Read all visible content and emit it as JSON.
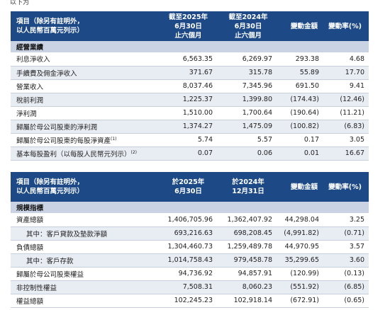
{
  "cutoff_text": "以下为",
  "table1": {
    "header": {
      "item_line1": "項目（除另有註明外，",
      "item_line2": "以人民幣百萬元列示）",
      "col1_line1": "截至2025年",
      "col1_line2": "6月30日",
      "col1_line3": "止六個月",
      "col2_line1": "截至2024年",
      "col2_line2": "6月30日",
      "col2_line3": "止六個月",
      "col3": "變動金額",
      "col4": "變動率(%)"
    },
    "section": "經營業績",
    "rows": [
      {
        "label": "利息淨收入",
        "v1": "6,563.35",
        "v2": "6,269.97",
        "v3": "293.38",
        "v4": "4.68"
      },
      {
        "label": "手續費及佣金淨收入",
        "v1": "371.67",
        "v2": "315.78",
        "v3": "55.89",
        "v4": "17.70"
      },
      {
        "label": "營業收入",
        "v1": "8,037.46",
        "v2": "7,345.96",
        "v3": "691.50",
        "v4": "9.41"
      },
      {
        "label": "稅前利潤",
        "v1": "1,225.37",
        "v2": "1,399.80",
        "v3": "(174.43)",
        "v4": "(12.46)"
      },
      {
        "label": "淨利潤",
        "v1": "1,510.00",
        "v2": "1,700.64",
        "v3": "(190.64)",
        "v4": "(11.21)"
      },
      {
        "label": "歸屬於母公司股東的淨利潤",
        "v1": "1,374.27",
        "v2": "1,475.09",
        "v3": "(100.82)",
        "v4": "(6.83)"
      },
      {
        "label": "歸屬於母公司股東的每股淨資產",
        "sup": "(1)",
        "v1": "5.74",
        "v2": "5.57",
        "v3": "0.17",
        "v4": "3.05"
      },
      {
        "label": "基本每股盈利（以每股人民幣元列示）",
        "sup": "(2)",
        "v1": "0.07",
        "v2": "0.06",
        "v3": "0.01",
        "v4": "16.67"
      }
    ]
  },
  "table2": {
    "header": {
      "item_line1": "項目（除另有註明外，",
      "item_line2": "以人民幣百萬元列示）",
      "col1_line1": "於2025年",
      "col1_line2": "6月30日",
      "col2_line1": "於2024年",
      "col2_line2": "12月31日",
      "col3": "變動金額",
      "col4": "變動率(%)"
    },
    "section": "規模指標",
    "rows": [
      {
        "label": "資產總額",
        "v1": "1,406,705.96",
        "v2": "1,362,407.92",
        "v3": "44,298.04",
        "v4": "3.25"
      },
      {
        "label": "其中：客戶貸款及墊款淨額",
        "v1": "693,216.63",
        "v2": "698,208.45",
        "v3": "(4,991.82)",
        "v4": "(0.71)"
      },
      {
        "label": "負債總額",
        "v1": "1,304,460.73",
        "v2": "1,259,489.78",
        "v3": "44,970.95",
        "v4": "3.57"
      },
      {
        "label": "其中：客戶存款",
        "v1": "1,014,758.43",
        "v2": "979,458.78",
        "v3": "35,299.65",
        "v4": "3.60"
      },
      {
        "label": "歸屬於母公司股東權益",
        "v1": "94,736.92",
        "v2": "94,857.91",
        "v3": "(120.99)",
        "v4": "(0.13)"
      },
      {
        "label": "非控制性權益",
        "v1": "7,508.31",
        "v2": "8,060.23",
        "v3": "(551.92)",
        "v4": "(6.85)"
      },
      {
        "label": "權益總額",
        "v1": "102,245.23",
        "v2": "102,918.14",
        "v3": "(672.91)",
        "v4": "(0.65)"
      }
    ]
  }
}
